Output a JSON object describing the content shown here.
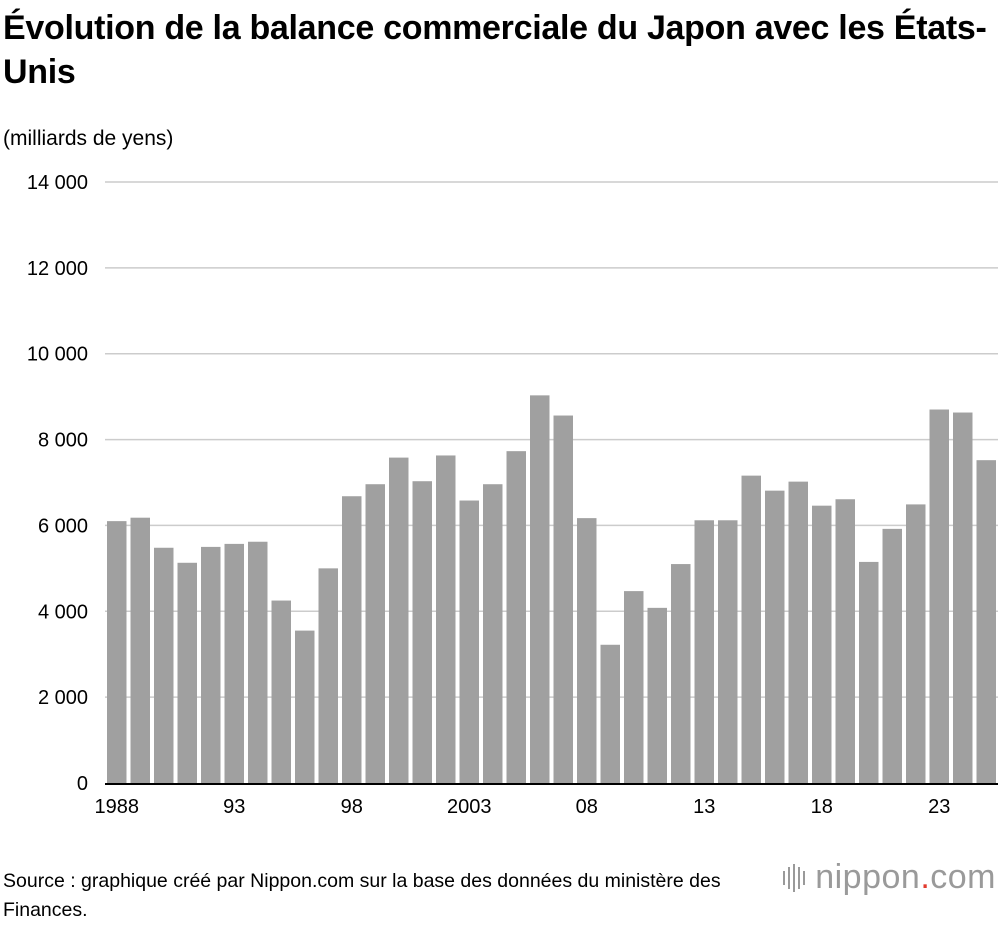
{
  "title": "Évolution de la balance commerciale du Japon avec les États-Unis",
  "unit_label": "(milliards de yens)",
  "source": "Source : graphique créé par Nippon.com sur la base des données du ministère des Finances.",
  "logo": {
    "text_main": "nippon",
    "text_dot": ".",
    "text_end": "com"
  },
  "colors": {
    "bar": "#a0a0a0",
    "grid": "#cccccc",
    "axis": "#000000",
    "logo_gray": "#9a9a9a",
    "logo_dot": "#e23b2e"
  },
  "chart_data": {
    "type": "bar",
    "title": "Évolution de la balance commerciale du Japon avec les États-Unis",
    "ylabel": "(milliards de yens)",
    "ylim": [
      0,
      14000
    ],
    "y_ticks": [
      0,
      2000,
      4000,
      6000,
      8000,
      10000,
      12000,
      14000
    ],
    "y_tick_labels": [
      "0",
      "2 000",
      "4 000",
      "6 000",
      "8 000",
      "10 000",
      "12 000",
      "14 000"
    ],
    "x_tick_labels": [
      {
        "index": 0,
        "label": "1988"
      },
      {
        "index": 5,
        "label": "93"
      },
      {
        "index": 10,
        "label": "98"
      },
      {
        "index": 15,
        "label": "2003"
      },
      {
        "index": 20,
        "label": "08"
      },
      {
        "index": 25,
        "label": "13"
      },
      {
        "index": 30,
        "label": "18"
      },
      {
        "index": 35,
        "label": "23"
      }
    ],
    "categories": [
      "1988",
      "1989",
      "1990",
      "1991",
      "1992",
      "1993",
      "1994",
      "1995",
      "1996",
      "1997",
      "1998",
      "1999",
      "2000",
      "2001",
      "2002",
      "2003",
      "2004",
      "2005",
      "2006",
      "2007",
      "2008",
      "2009",
      "2010",
      "2011",
      "2012",
      "2013",
      "2014",
      "2015",
      "2016",
      "2017",
      "2018",
      "2019",
      "2020",
      "2021",
      "2022",
      "2023",
      "2024",
      "2025"
    ],
    "values": [
      6100,
      6180,
      5480,
      5130,
      5500,
      5570,
      5620,
      4250,
      3550,
      5000,
      6680,
      6960,
      7580,
      7030,
      7630,
      6580,
      6960,
      7730,
      9030,
      8560,
      6170,
      3220,
      4470,
      4080,
      5100,
      6120,
      6120,
      7160,
      6810,
      7020,
      6460,
      6610,
      5150,
      5920,
      6490,
      8700,
      8630,
      7520
    ],
    "grid": true
  }
}
